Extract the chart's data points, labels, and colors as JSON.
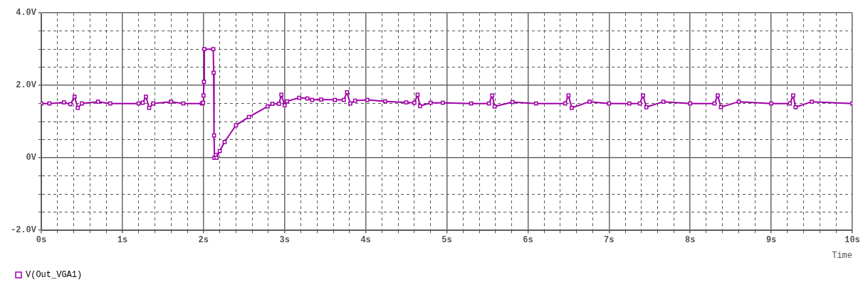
{
  "chart_data": {
    "type": "line",
    "xlabel": "Time",
    "legend": "bottom left",
    "grid": true,
    "marker": "square",
    "line_style": "solid",
    "xlim": [
      0,
      10
    ],
    "ylim": [
      -2,
      4
    ],
    "xticks": [
      {
        "value": 0,
        "label": "0s"
      },
      {
        "value": 0.2,
        "label": null
      },
      {
        "value": 0.4,
        "label": null
      },
      {
        "value": 0.6,
        "label": null
      },
      {
        "value": 0.8,
        "label": null
      },
      {
        "value": 1,
        "label": "1s"
      },
      {
        "value": 1.2,
        "label": null
      },
      {
        "value": 1.4,
        "label": null
      },
      {
        "value": 1.6,
        "label": null
      },
      {
        "value": 1.8,
        "label": null
      },
      {
        "value": 2,
        "label": "2s"
      },
      {
        "value": 2.2,
        "label": null
      },
      {
        "value": 2.4,
        "label": null
      },
      {
        "value": 2.6,
        "label": null
      },
      {
        "value": 2.8,
        "label": null
      },
      {
        "value": 3,
        "label": "3s"
      },
      {
        "value": 3.2,
        "label": null
      },
      {
        "value": 3.4,
        "label": null
      },
      {
        "value": 3.6,
        "label": null
      },
      {
        "value": 3.8,
        "label": null
      },
      {
        "value": 4,
        "label": "4s"
      },
      {
        "value": 4.2,
        "label": null
      },
      {
        "value": 4.4,
        "label": null
      },
      {
        "value": 4.6,
        "label": null
      },
      {
        "value": 4.8,
        "label": null
      },
      {
        "value": 5,
        "label": "5s"
      },
      {
        "value": 5.2,
        "label": null
      },
      {
        "value": 5.4,
        "label": null
      },
      {
        "value": 5.6,
        "label": null
      },
      {
        "value": 5.8,
        "label": null
      },
      {
        "value": 6,
        "label": "6s"
      },
      {
        "value": 6.2,
        "label": null
      },
      {
        "value": 6.4,
        "label": null
      },
      {
        "value": 6.6,
        "label": null
      },
      {
        "value": 6.8,
        "label": null
      },
      {
        "value": 7,
        "label": "7s"
      },
      {
        "value": 7.2,
        "label": null
      },
      {
        "value": 7.4,
        "label": null
      },
      {
        "value": 7.6,
        "label": null
      },
      {
        "value": 7.8,
        "label": null
      },
      {
        "value": 8,
        "label": "8s"
      },
      {
        "value": 8.2,
        "label": null
      },
      {
        "value": 8.4,
        "label": null
      },
      {
        "value": 8.6,
        "label": null
      },
      {
        "value": 8.8,
        "label": null
      },
      {
        "value": 9,
        "label": "9s"
      },
      {
        "value": 9.2,
        "label": null
      },
      {
        "value": 9.4,
        "label": null
      },
      {
        "value": 9.6,
        "label": null
      },
      {
        "value": 9.8,
        "label": null
      },
      {
        "value": 10,
        "label": "10s"
      }
    ],
    "yticks": [
      {
        "value": -2,
        "label": "-2.0V"
      },
      {
        "value": -1.5,
        "label": null
      },
      {
        "value": -1,
        "label": null
      },
      {
        "value": -0.5,
        "label": null
      },
      {
        "value": 0,
        "label": "0V"
      },
      {
        "value": 0.5,
        "label": null
      },
      {
        "value": 1,
        "label": null
      },
      {
        "value": 1.5,
        "label": null
      },
      {
        "value": 2,
        "label": "2.0V"
      },
      {
        "value": 2.5,
        "label": null
      },
      {
        "value": 3,
        "label": null
      },
      {
        "value": 3.5,
        "label": null
      },
      {
        "value": 4,
        "label": "4.0V"
      }
    ],
    "series": [
      {
        "name": "V(Out_VGA1)",
        "color": "#a000a8",
        "x": [
          0,
          0.1,
          0.28,
          0.36,
          0.41,
          0.45,
          0.5,
          0.7,
          0.85,
          1.2,
          1.25,
          1.29,
          1.33,
          1.38,
          1.6,
          1.75,
          1.98,
          1.995,
          2.0,
          2.005,
          2.01,
          2.12,
          2.125,
          2.13,
          2.135,
          2.15,
          2.16,
          2.2,
          2.26,
          2.4,
          2.56,
          2.79,
          2.85,
          2.93,
          2.96,
          3.0,
          3.03,
          3.18,
          3.28,
          3.34,
          3.45,
          3.62,
          3.73,
          3.77,
          3.81,
          3.87,
          4.02,
          4.24,
          4.5,
          4.6,
          4.64,
          4.67,
          4.8,
          4.95,
          5.3,
          5.52,
          5.56,
          5.59,
          5.81,
          6.1,
          6.46,
          6.5,
          6.54,
          6.76,
          7.0,
          7.25,
          7.38,
          7.42,
          7.46,
          7.67,
          8.0,
          8.3,
          8.34,
          8.38,
          8.6,
          9.0,
          9.23,
          9.27,
          9.3,
          9.5,
          10
        ],
        "values": [
          1.5,
          1.5,
          1.53,
          1.48,
          1.69,
          1.38,
          1.5,
          1.55,
          1.5,
          1.5,
          1.52,
          1.69,
          1.38,
          1.5,
          1.55,
          1.5,
          1.5,
          1.52,
          1.72,
          2.1,
          3.0,
          3.0,
          2.35,
          0.62,
          0,
          0.08,
          0,
          0.19,
          0.44,
          0.9,
          1.13,
          1.42,
          1.49,
          1.49,
          1.74,
          1.45,
          1.56,
          1.66,
          1.64,
          1.6,
          1.61,
          1.6,
          1.6,
          1.81,
          1.5,
          1.58,
          1.6,
          1.56,
          1.53,
          1.52,
          1.74,
          1.43,
          1.52,
          1.52,
          1.5,
          1.5,
          1.72,
          1.42,
          1.54,
          1.5,
          1.5,
          1.72,
          1.38,
          1.55,
          1.5,
          1.5,
          1.5,
          1.72,
          1.4,
          1.55,
          1.5,
          1.5,
          1.72,
          1.4,
          1.55,
          1.5,
          1.5,
          1.72,
          1.4,
          1.55,
          1.5
        ]
      }
    ]
  }
}
